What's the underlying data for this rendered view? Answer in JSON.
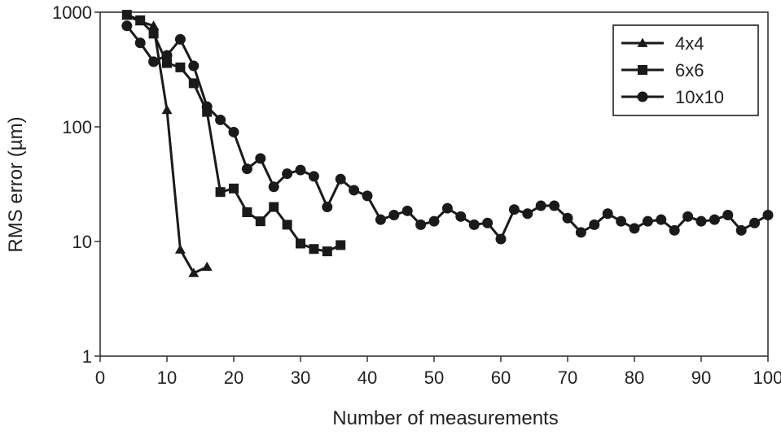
{
  "chart_data": {
    "type": "line",
    "title": "",
    "xlabel": "Number of measurements",
    "ylabel": "RMS error (µm)",
    "x_scale": "linear",
    "y_scale": "log",
    "xlim": [
      0,
      100
    ],
    "ylim": [
      1,
      1000
    ],
    "x_ticks": [
      0,
      10,
      20,
      30,
      40,
      50,
      60,
      70,
      80,
      90,
      100
    ],
    "x_tick_labels": [
      "0",
      "10",
      "20",
      "30",
      "40",
      "50",
      "60",
      "70",
      "80",
      "90",
      "100"
    ],
    "y_ticks": [
      1,
      10,
      100,
      1000
    ],
    "y_tick_labels": [
      "1",
      "10",
      "100",
      "1000"
    ],
    "grid": false,
    "legend_position": "top-right",
    "line_color": "#1a1a1a",
    "series": [
      {
        "name": "4x4",
        "marker": "triangle",
        "x": [
          4,
          6,
          8,
          10,
          12,
          14,
          16
        ],
        "y": [
          930,
          830,
          760,
          140,
          8.5,
          5.3,
          6.0
        ]
      },
      {
        "name": "6x6",
        "marker": "square",
        "x": [
          4,
          6,
          8,
          10,
          12,
          14,
          16,
          18,
          20,
          22,
          24,
          26,
          28,
          30,
          32,
          34,
          36
        ],
        "y": [
          950,
          850,
          650,
          360,
          330,
          240,
          135,
          27,
          29,
          18,
          15,
          20,
          14,
          9.6,
          8.6,
          8.2,
          9.3
        ]
      },
      {
        "name": "10x10",
        "marker": "circle",
        "x": [
          4,
          6,
          8,
          10,
          12,
          14,
          16,
          18,
          20,
          22,
          24,
          26,
          28,
          30,
          32,
          34,
          36,
          38,
          40,
          42,
          44,
          46,
          48,
          50,
          52,
          54,
          56,
          58,
          60,
          62,
          64,
          66,
          68,
          70,
          72,
          74,
          76,
          78,
          80,
          82,
          84,
          86,
          88,
          90,
          92,
          94,
          96,
          98,
          100
        ],
        "y": [
          760,
          540,
          370,
          420,
          580,
          340,
          150,
          115,
          90,
          43,
          53,
          30,
          39,
          42,
          37,
          20,
          35,
          28,
          25,
          15.5,
          17,
          18.5,
          14,
          15,
          19.5,
          16.5,
          14,
          14.5,
          10.5,
          19,
          17.5,
          20.5,
          20.5,
          16,
          12,
          14,
          17.5,
          15,
          13,
          15,
          15.5,
          12.5,
          16.5,
          15,
          15.5,
          17,
          12.5,
          14.5,
          17
        ]
      }
    ]
  }
}
